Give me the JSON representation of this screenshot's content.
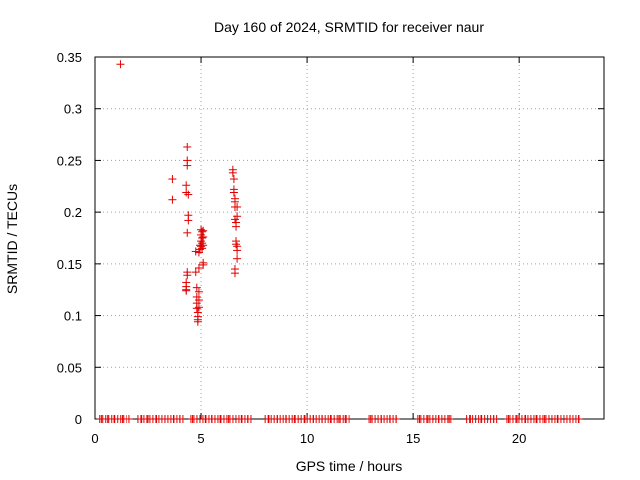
{
  "chart_data": {
    "type": "scatter",
    "title": "Day 160 of 2024, SRMTID for receiver naur",
    "xlabel": "GPS time / hours",
    "ylabel": "SRMTID / TECUs",
    "xlim": [
      0,
      24
    ],
    "ylim": [
      0,
      0.35
    ],
    "xticks": [
      0,
      5,
      10,
      15,
      20
    ],
    "xtick_labels": [
      "0",
      "5",
      "10",
      "15",
      "20"
    ],
    "yticks": [
      0,
      0.05,
      0.1,
      0.15,
      0.2,
      0.25,
      0.3,
      0.35
    ],
    "ytick_labels": [
      "0",
      "0.05",
      "0.1",
      "0.15",
      "0.2",
      "0.25",
      "0.3",
      "0.35"
    ],
    "grid": true,
    "marker": "+",
    "color": "#e00000",
    "series": [
      {
        "x": [
          1.2,
          3.65,
          3.65,
          4.3,
          4.3,
          4.35,
          4.35,
          4.35,
          4.4,
          4.4,
          4.4,
          4.35,
          4.35,
          4.35,
          4.3,
          4.3,
          4.3,
          4.3,
          4.75,
          4.75,
          4.8,
          4.8,
          4.8,
          4.8,
          4.85,
          4.85,
          4.85,
          4.85,
          4.9,
          4.9,
          4.9,
          4.9,
          4.9,
          4.95,
          4.95,
          5.0,
          5.0,
          5.0,
          5.0,
          5.05,
          5.05,
          5.05,
          5.05,
          5.1,
          5.1,
          5.1,
          5.1,
          5.1,
          6.5,
          6.5,
          6.55,
          6.55,
          6.55,
          6.6,
          6.6,
          6.6,
          6.6,
          6.65,
          6.65,
          6.65,
          6.65,
          6.7,
          6.7,
          6.7,
          6.7,
          6.7,
          6.6,
          6.6,
          0.3,
          0.6,
          0.9,
          1.3,
          1.6,
          2.2,
          2.5,
          2.9,
          3.3,
          3.7,
          4.0,
          4.6,
          5.2,
          5.5,
          5.9,
          6.3,
          6.9,
          7.2,
          8.2,
          8.6,
          9.0,
          9.4,
          9.9,
          10.3,
          10.7,
          11.1,
          11.5,
          11.8,
          13.0,
          13.5,
          13.9,
          14.2,
          15.3,
          15.7,
          16.2,
          16.7,
          17.7,
          18.2,
          18.8,
          19.5,
          19.9,
          20.3,
          20.8,
          21.2,
          21.8,
          22.4,
          22.8
        ],
        "y": [
          0.343,
          0.232,
          0.212,
          0.226,
          0.219,
          0.263,
          0.25,
          0.245,
          0.217,
          0.197,
          0.192,
          0.18,
          0.142,
          0.139,
          0.132,
          0.128,
          0.125,
          0.124,
          0.162,
          0.142,
          0.127,
          0.118,
          0.112,
          0.107,
          0.103,
          0.099,
          0.096,
          0.094,
          0.161,
          0.146,
          0.123,
          0.115,
          0.108,
          0.168,
          0.164,
          0.183,
          0.178,
          0.172,
          0.167,
          0.181,
          0.175,
          0.17,
          0.165,
          0.182,
          0.176,
          0.168,
          0.151,
          0.149,
          0.241,
          0.238,
          0.232,
          0.222,
          0.219,
          0.213,
          0.21,
          0.205,
          0.193,
          0.19,
          0.186,
          0.172,
          0.169,
          0.205,
          0.196,
          0.167,
          0.163,
          0.155,
          0.145,
          0.141,
          0,
          0,
          0,
          0,
          0,
          0,
          0,
          0,
          0,
          0,
          0,
          0,
          0,
          0,
          0,
          0,
          0,
          0,
          0,
          0,
          0,
          0,
          0,
          0,
          0,
          0,
          0,
          0,
          0,
          0,
          0,
          0,
          0,
          0,
          0,
          0,
          0,
          0,
          0,
          0,
          0,
          0,
          0,
          0,
          0,
          0,
          0
        ]
      }
    ]
  }
}
